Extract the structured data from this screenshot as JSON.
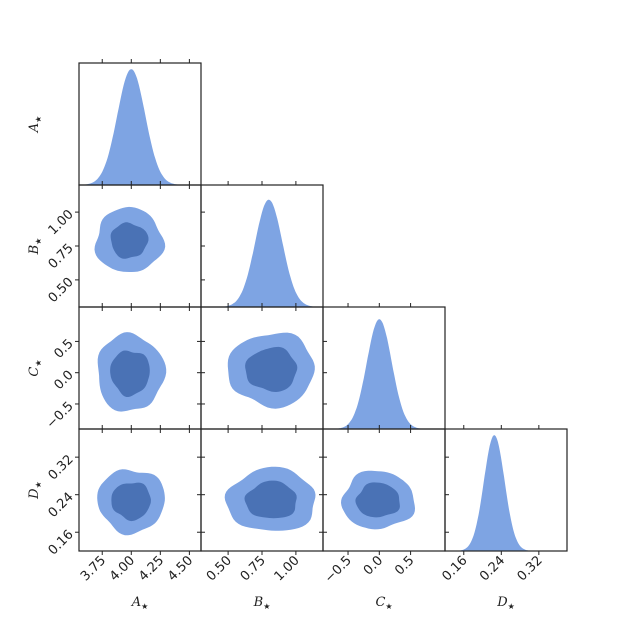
{
  "chart_data": {
    "type": "corner",
    "grid": false,
    "colors": {
      "outer": "#7ea4e3",
      "inner": "#4a72b5",
      "frame": "#222222"
    },
    "parameters": [
      {
        "key": "A",
        "label": "A",
        "subscript": "★",
        "range": [
          3.55,
          4.6
        ],
        "ticks": [
          "3.75",
          "4.00",
          "4.25",
          "4.50"
        ],
        "tick_values": [
          3.75,
          4.0,
          4.25,
          4.5
        ],
        "mean": 4.0,
        "sd": 0.12
      },
      {
        "key": "B",
        "label": "B",
        "subscript": "★",
        "range": [
          0.3,
          1.2
        ],
        "ticks": [
          "0.50",
          "0.75",
          "1.00"
        ],
        "tick_values": [
          0.5,
          0.75,
          1.0
        ],
        "mean": 0.8,
        "sd": 0.1
      },
      {
        "key": "C",
        "label": "C",
        "subscript": "★",
        "range": [
          -0.9,
          1.05
        ],
        "ticks": [
          "−0.5",
          "0.0",
          "0.5"
        ],
        "tick_values": [
          -0.5,
          0.0,
          0.5
        ],
        "mean": 0.0,
        "sd": 0.2
      },
      {
        "key": "D",
        "label": "D",
        "subscript": "★",
        "range": [
          0.12,
          0.38
        ],
        "ticks": [
          "0.16",
          "0.24",
          "0.32"
        ],
        "tick_values": [
          0.16,
          0.24,
          0.32
        ],
        "mean": 0.225,
        "sd": 0.022
      }
    ],
    "marginals": [
      {
        "param": "A",
        "peak": 4.0,
        "sd": 0.12,
        "peak_height": 0.95
      },
      {
        "param": "B",
        "peak": 0.8,
        "sd": 0.1,
        "peak_height": 0.88
      },
      {
        "param": "C",
        "peak": 0.0,
        "sd": 0.2,
        "peak_height": 0.9
      },
      {
        "param": "D",
        "peak": 0.225,
        "sd": 0.022,
        "peak_height": 0.95
      }
    ],
    "contours": [
      {
        "x": "A",
        "y": "B",
        "center": [
          3.98,
          0.79
        ],
        "outer": [
          0.29,
          0.24
        ],
        "inner": [
          0.16,
          0.13
        ]
      },
      {
        "x": "A",
        "y": "C",
        "center": [
          3.99,
          0.0
        ],
        "outer": [
          0.29,
          0.62
        ],
        "inner": [
          0.17,
          0.36
        ]
      },
      {
        "x": "A",
        "y": "D",
        "center": [
          4.0,
          0.227
        ],
        "outer": [
          0.29,
          0.068
        ],
        "inner": [
          0.17,
          0.04
        ]
      },
      {
        "x": "B",
        "y": "C",
        "center": [
          0.82,
          0.05
        ],
        "outer": [
          0.32,
          0.59
        ],
        "inner": [
          0.19,
          0.35
        ]
      },
      {
        "x": "B",
        "y": "D",
        "center": [
          0.82,
          0.228
        ],
        "outer": [
          0.33,
          0.068
        ],
        "inner": [
          0.19,
          0.04
        ]
      },
      {
        "x": "C",
        "y": "D",
        "center": [
          -0.02,
          0.228
        ],
        "outer": [
          0.58,
          0.062
        ],
        "inner": [
          0.35,
          0.037
        ]
      }
    ]
  }
}
